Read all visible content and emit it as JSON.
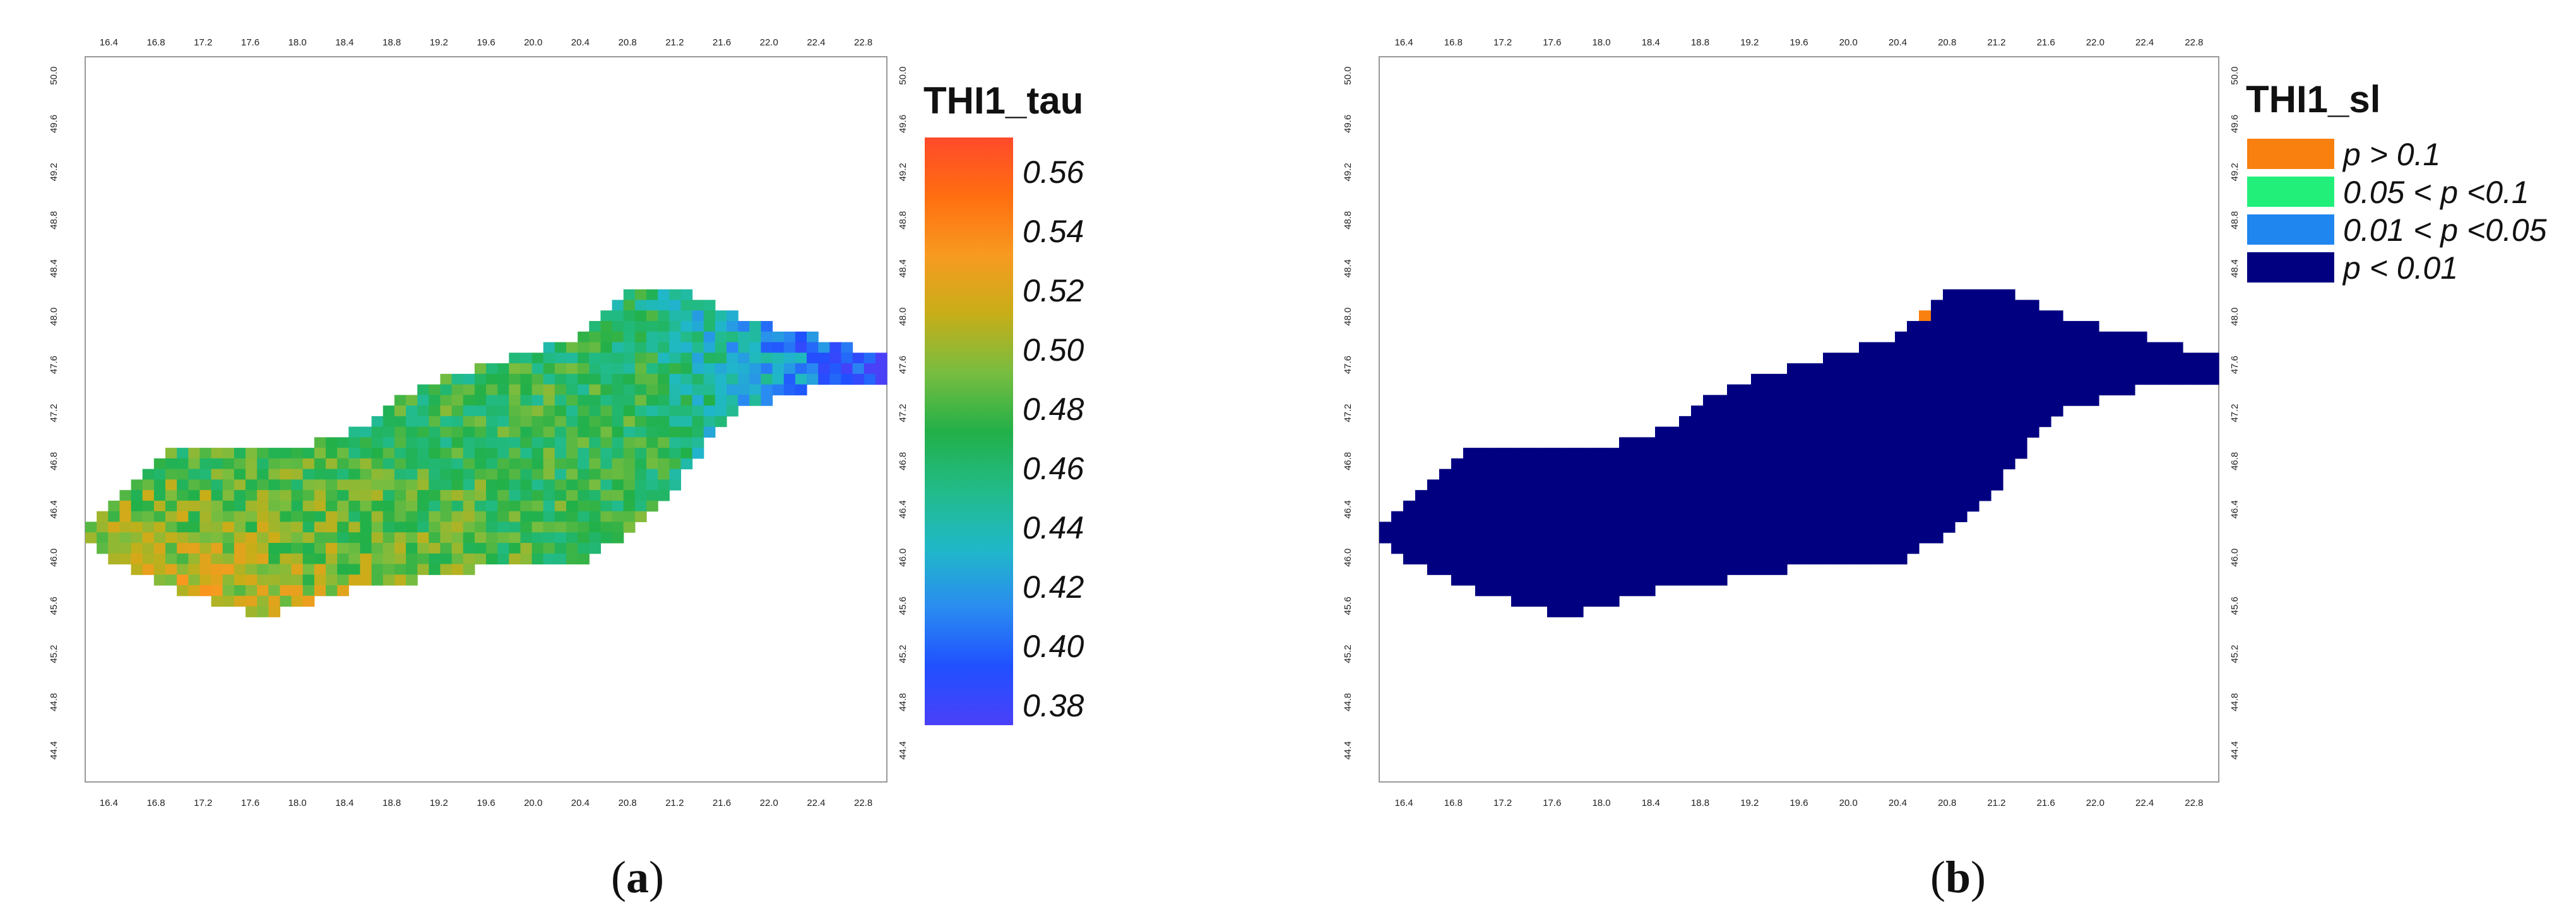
{
  "panels": [
    {
      "id": "a",
      "caption_letter": "a",
      "legend_title": "THI1_tau",
      "legend_type": "continuous",
      "legend_ticks": [
        "0.56",
        "0.54",
        "0.52",
        "0.50",
        "0.48",
        "0.46",
        "0.44",
        "0.42",
        "0.40",
        "0.38"
      ],
      "colorbar_colors": [
        "#ff4a2a",
        "#ff6e10",
        "#f89a20",
        "#c7ae18",
        "#78bd40",
        "#22b048",
        "#22bb88",
        "#20b8c8",
        "#2a8cf0",
        "#2050ff",
        "#4a40f8"
      ],
      "x_ticks": [
        "16.4",
        "16.8",
        "17.2",
        "17.6",
        "18.0",
        "18.4",
        "18.8",
        "19.2",
        "19.6",
        "20.0",
        "20.4",
        "20.8",
        "21.2",
        "21.6",
        "22.0",
        "22.4",
        "22.8"
      ],
      "y_ticks": [
        "50.0",
        "49.6",
        "49.2",
        "48.8",
        "48.4",
        "48.0",
        "47.6",
        "47.2",
        "46.8",
        "46.4",
        "46.0",
        "45.6",
        "45.2",
        "44.8",
        "44.4"
      ]
    },
    {
      "id": "b",
      "caption_letter": "b",
      "legend_title": "THI1_sl",
      "legend_type": "categorical",
      "legend_items": [
        {
          "label": "p > 0.1",
          "color": "#f97f0e"
        },
        {
          "label": "0.05 < p <0.1",
          "color": "#22ef7a"
        },
        {
          "label": "0.01 < p <0.05",
          "color": "#1f86f0"
        },
        {
          "label": "p < 0.01",
          "color": "#000080"
        }
      ],
      "x_ticks": [
        "16.4",
        "16.8",
        "17.2",
        "17.6",
        "18.0",
        "18.4",
        "18.8",
        "19.2",
        "19.6",
        "20.0",
        "20.4",
        "20.8",
        "21.2",
        "21.6",
        "22.0",
        "22.4",
        "22.8"
      ],
      "y_ticks": [
        "50.0",
        "49.6",
        "49.2",
        "48.8",
        "48.4",
        "48.0",
        "47.6",
        "47.2",
        "46.8",
        "46.4",
        "46.0",
        "45.6",
        "45.2",
        "44.8",
        "44.4"
      ]
    }
  ]
}
